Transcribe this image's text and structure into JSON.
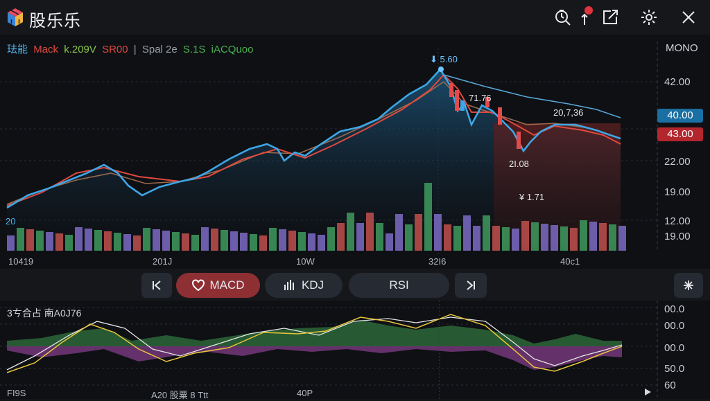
{
  "app": {
    "title": "股乐乐",
    "logo": "cube-logo-icon"
  },
  "toolbar": {
    "icons": [
      "search-clock-icon",
      "notification-icon",
      "share-icon",
      "settings-icon",
      "close-icon"
    ]
  },
  "legend": {
    "items": [
      {
        "text": "珐能",
        "color": "#4fb3e8"
      },
      {
        "text": "Mack",
        "color": "#e2493f"
      },
      {
        "text": "k.209V",
        "color": "#8bc34a"
      },
      {
        "text": "SR00",
        "color": "#e2493f"
      },
      {
        "text": "|",
        "color": "#9aa0a8"
      },
      {
        "text": "Spal 2e",
        "color": "#9aa0a8"
      },
      {
        "text": "S.1S",
        "color": "#4caf50"
      },
      {
        "text": "iACQuoo",
        "color": "#4caf50"
      }
    ]
  },
  "chart_mode": "MONO",
  "price_axis": [
    "42.00",
    "22.00",
    "19.00",
    "12.00",
    "19.00"
  ],
  "price_tags": {
    "blue": "40.00",
    "red": "43.00",
    "blue_color": "#1a6fa3",
    "red_color": "#b3262d"
  },
  "volume_label": "20",
  "annotations": {
    "peak": "5.60",
    "mid": "71.76",
    "right": "20,7,36",
    "low": "2I.08",
    "arrow": "1.71"
  },
  "dates": [
    "10419",
    "201J",
    "10W",
    "32I6",
    "40c1"
  ],
  "tabs": {
    "prev": "|<",
    "macd": "MACD",
    "kdj": "KDJ",
    "rsi": "RSI",
    "next": ">|",
    "snow": "*"
  },
  "indicator": {
    "title": "3ㄘ合占 南A0J76",
    "axis": [
      "00.0",
      "00.0",
      "00.0",
      "50.0",
      "60"
    ]
  },
  "bottom_labels": [
    "FI9S",
    "A20 股粟 8 Ttt",
    "40P"
  ],
  "colors": {
    "blue_line": "#3ea6e6",
    "red_line": "#e0493e",
    "brown_line": "#a06a4a",
    "accent": "#8e2f34"
  }
}
